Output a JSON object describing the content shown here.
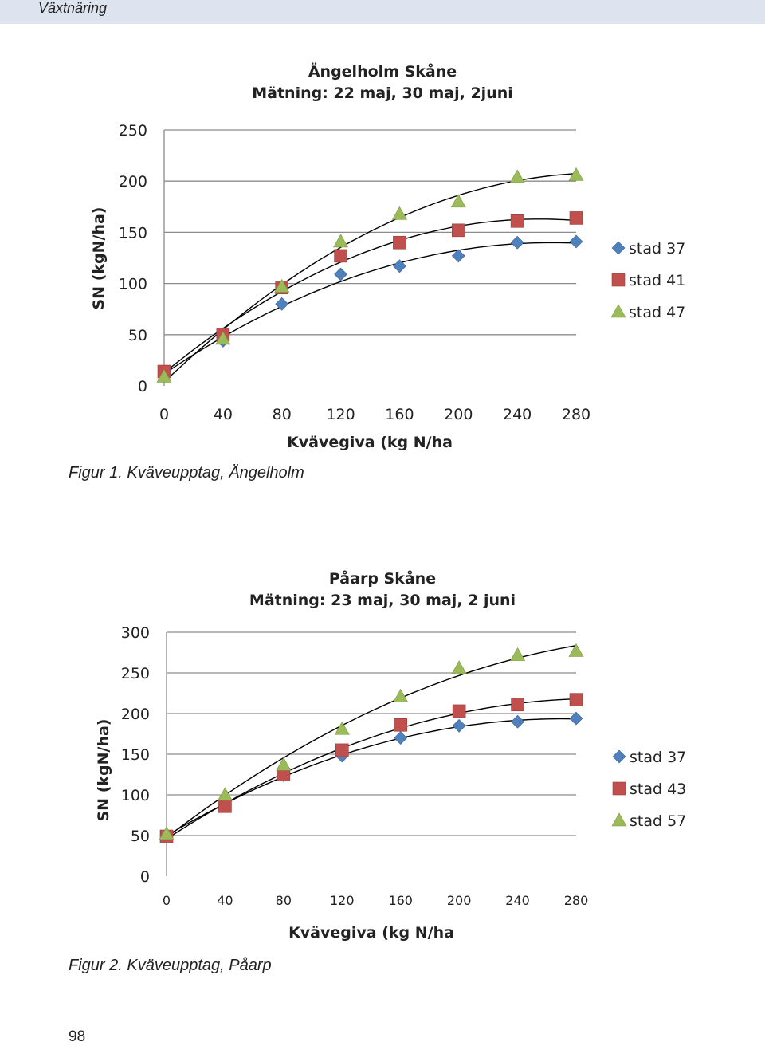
{
  "header": {
    "title": "Växtnäring"
  },
  "page_number": "98",
  "colors": {
    "diamond": "#4f81bd",
    "square": "#c0504d",
    "triangle": "#9bbb59",
    "grid": "#8c8c8c",
    "curve": "#000000",
    "header_band": "#dde3ef"
  },
  "figures": [
    {
      "caption": "Figur 1. Kväveupptag, Ängelholm"
    },
    {
      "caption": "Figur 2. Kväveupptag, Påarp"
    }
  ],
  "chart_data": [
    {
      "type": "scatter",
      "title": [
        "Ängelholm Skåne",
        "Mätning: 22 maj, 30 maj, 2juni"
      ],
      "xlabel": "Kvävegiva (kg N/ha",
      "ylabel": "SN (kgN/ha)",
      "xlim": [
        0,
        280
      ],
      "ylim": [
        0,
        250
      ],
      "x_ticks": [
        0,
        40,
        80,
        120,
        160,
        200,
        240,
        280
      ],
      "y_ticks": [
        0,
        50,
        100,
        150,
        200,
        250
      ],
      "x_tick_labels": [
        "0",
        "40",
        "80",
        "120",
        "160",
        "200",
        "240",
        "280"
      ],
      "y_tick_labels": [
        "0",
        "50",
        "100",
        "150",
        "200",
        "250"
      ],
      "grid": "horizontal",
      "legend_position": "right",
      "trendlines": true,
      "x": [
        0,
        40,
        80,
        120,
        160,
        200,
        240,
        280
      ],
      "series": [
        {
          "name": "stad 37",
          "marker": "diamond",
          "values": [
            12,
            44,
            80,
            109,
            117,
            127,
            140,
            141
          ]
        },
        {
          "name": "stad 41",
          "marker": "square",
          "values": [
            14,
            50,
            96,
            127,
            140,
            152,
            161,
            164
          ]
        },
        {
          "name": "stad 47",
          "marker": "triangle",
          "values": [
            9,
            46,
            97,
            141,
            168,
            180,
            204,
            206
          ]
        }
      ]
    },
    {
      "type": "scatter",
      "title": [
        "Påarp Skåne",
        "Mätning: 23 maj, 30 maj, 2 juni"
      ],
      "xlabel": "Kvävegiva (kg N/ha",
      "ylabel": "SN (kgN/ha)",
      "xlim": [
        0,
        280
      ],
      "ylim": [
        0,
        300
      ],
      "x_ticks": [
        0,
        40,
        80,
        120,
        160,
        200,
        240,
        280
      ],
      "y_ticks": [
        0,
        50,
        100,
        150,
        200,
        250,
        300
      ],
      "x_tick_labels": [
        "0",
        "40",
        "80",
        "120",
        "160",
        "200",
        "240",
        "280"
      ],
      "y_tick_labels": [
        "0",
        "50",
        "100",
        "150",
        "200",
        "250",
        "300"
      ],
      "grid": "horizontal",
      "legend_position": "right",
      "trendlines": true,
      "x": [
        0,
        40,
        80,
        120,
        160,
        200,
        240,
        280
      ],
      "series": [
        {
          "name": "stad 37",
          "marker": "diamond",
          "values": [
            50,
            88,
            124,
            148,
            170,
            185,
            190,
            194
          ]
        },
        {
          "name": "stad 43",
          "marker": "square",
          "values": [
            49,
            86,
            125,
            155,
            186,
            203,
            211,
            217
          ]
        },
        {
          "name": "stad 57",
          "marker": "triangle",
          "values": [
            52,
            100,
            137,
            181,
            221,
            256,
            272,
            277
          ]
        }
      ]
    }
  ]
}
